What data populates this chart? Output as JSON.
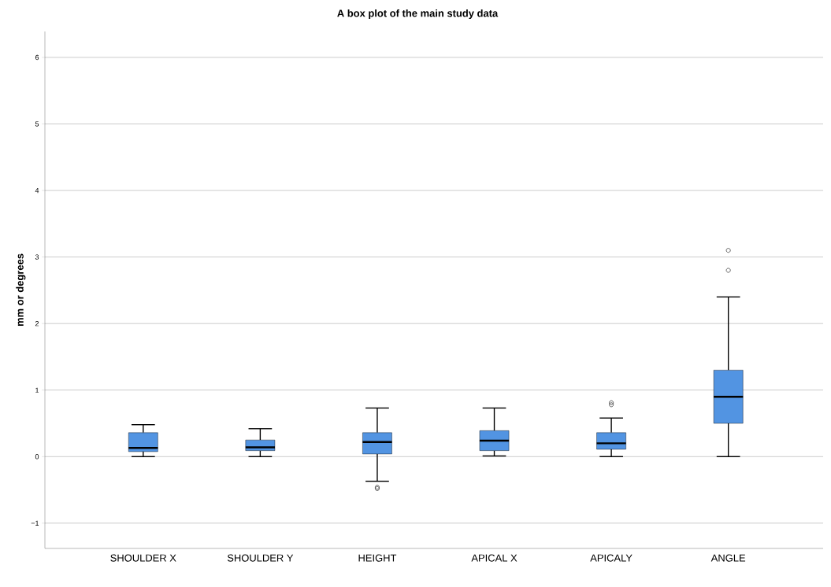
{
  "chart_data": {
    "type": "box",
    "title": "A box plot of the main study data",
    "ylabel": "mm or degrees",
    "categories": [
      "SHOULDER X",
      "SHOULDER Y",
      "HEIGHT",
      "APICAL X",
      "APICALY",
      "ANGLE"
    ],
    "boxes": [
      {
        "low": 0,
        "q1": 0.075,
        "median": 0.13,
        "q3": 0.36,
        "high": 0.48
      },
      {
        "low": 0,
        "q1": 0.09,
        "median": 0.14,
        "q3": 0.25,
        "high": 0.42
      },
      {
        "low": -0.37,
        "q1": 0.04,
        "median": 0.22,
        "q3": 0.36,
        "high": 0.73,
        "outliers": [
          -0.46,
          -0.48
        ]
      },
      {
        "low": 0.01,
        "q1": 0.09,
        "median": 0.24,
        "q3": 0.39,
        "high": 0.73
      },
      {
        "low": 0,
        "q1": 0.11,
        "median": 0.2,
        "q3": 0.36,
        "high": 0.58,
        "outliers": [
          0.78,
          0.81
        ]
      },
      {
        "low": 0,
        "q1": 0.5,
        "median": 0.9,
        "q3": 1.3,
        "high": 2.4,
        "outliers": [
          2.8,
          3.1
        ]
      }
    ],
    "color": "#5294e2",
    "ylim": [
      -1.38,
      6.39
    ],
    "yticks": [
      {
        "value": -1,
        "label": "−1"
      },
      0,
      1,
      2,
      3,
      4,
      5,
      6
    ],
    "grid": "y"
  }
}
